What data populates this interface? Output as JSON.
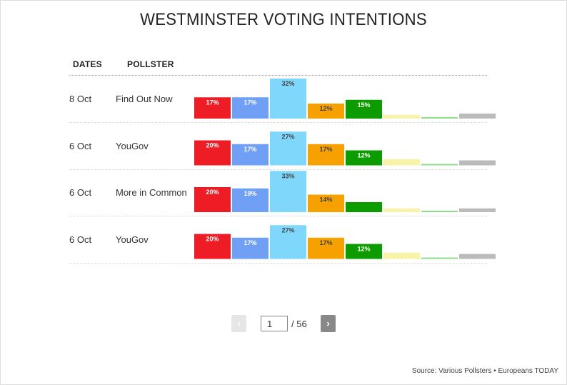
{
  "title": "WESTMINSTER VOTING INTENTIONS",
  "columns": {
    "dates": "DATES",
    "pollster": "POLLSTER"
  },
  "party_colors": [
    "#ee1c25",
    "#6fa0f5",
    "#7fd8fc",
    "#f7a100",
    "#0c9c00",
    "#f7f3a8",
    "#90dd90",
    "#bbbbbb"
  ],
  "chart_data": {
    "type": "bar",
    "title": "WESTMINSTER VOTING INTENTIONS",
    "value_unit": "%",
    "legend": "none",
    "grid": false,
    "rows": [
      {
        "date": "8 Oct",
        "pollster": "Find Out Now",
        "values": [
          17,
          17,
          32,
          12,
          15,
          3,
          1,
          4
        ],
        "labels": [
          "17%",
          "17%",
          "32%",
          "12%",
          "15%",
          "",
          "",
          ""
        ]
      },
      {
        "date": "6 Oct",
        "pollster": "YouGov",
        "values": [
          20,
          17,
          27,
          17,
          12,
          5,
          1,
          4
        ],
        "labels": [
          "20%",
          "17%",
          "27%",
          "17%",
          "12%",
          "",
          "",
          ""
        ]
      },
      {
        "date": "6 Oct",
        "pollster": "More in Common",
        "values": [
          20,
          19,
          33,
          14,
          8,
          3,
          1,
          3
        ],
        "labels": [
          "20%",
          "19%",
          "33%",
          "14%",
          "",
          "",
          "",
          ""
        ]
      },
      {
        "date": "6 Oct",
        "pollster": "YouGov",
        "values": [
          20,
          17,
          27,
          17,
          12,
          5,
          1,
          4
        ],
        "labels": [
          "20%",
          "17%",
          "27%",
          "17%",
          "12%",
          "",
          "",
          ""
        ]
      }
    ]
  },
  "pagination": {
    "prev_label": "‹",
    "next_label": "›",
    "current_page": "1",
    "total_label": "/ 56"
  },
  "source": "Source: Various Pollsters • Europeans TODAY"
}
